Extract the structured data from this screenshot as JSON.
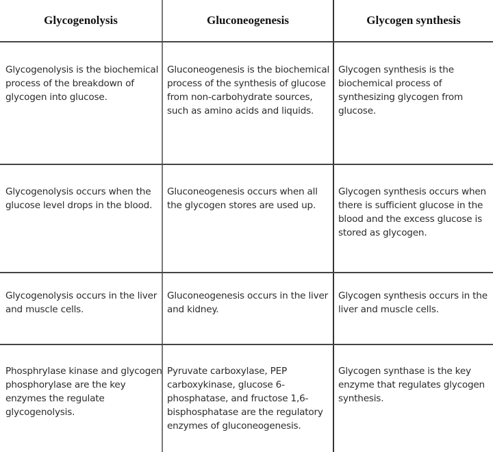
{
  "headers": [
    "Glycogenolysis",
    "Gluconeogenesis",
    "Glycogen synthesis"
  ],
  "rows": [
    [
      "Glycogenolysis is the biochemical process of the breakdown of glycogen into glucose.",
      "Gluconeogenesis is the biochemical process of the synthesis of glucose from non-carbohydrate sources, such as amino acids and liquids.",
      "Glycogen synthesis is the biochemical process of synthesizing glycogen from glucose."
    ],
    [
      "Glycogenolysis occurs when the glucose level drops in the blood.",
      "Gluconeogenesis occurs when all the glycogen stores are used up.",
      "Glycogen synthesis occurs when there is sufficient glucose in the blood and the excess glucose is stored as glycogen."
    ],
    [
      "Glycogenolysis occurs in the liver and muscle cells.",
      "Gluconeogenesis occurs in the liver and kidney.",
      "Glycogen synthesis occurs in the liver and muscle cells."
    ],
    [
      "Phosphrylase kinase and glycogen phosphorylase are the key enzymes the regulate glycogenolysis.",
      "Pyruvate carboxylase, PEP carboxykinase, glucose 6-phosphatase, and fructose 1,6-bisphosphatase are the regulatory enzymes of gluconeogenesis.",
      "Glycogen synthase is the key enzyme that regulates glycogen synthesis."
    ]
  ]
}
